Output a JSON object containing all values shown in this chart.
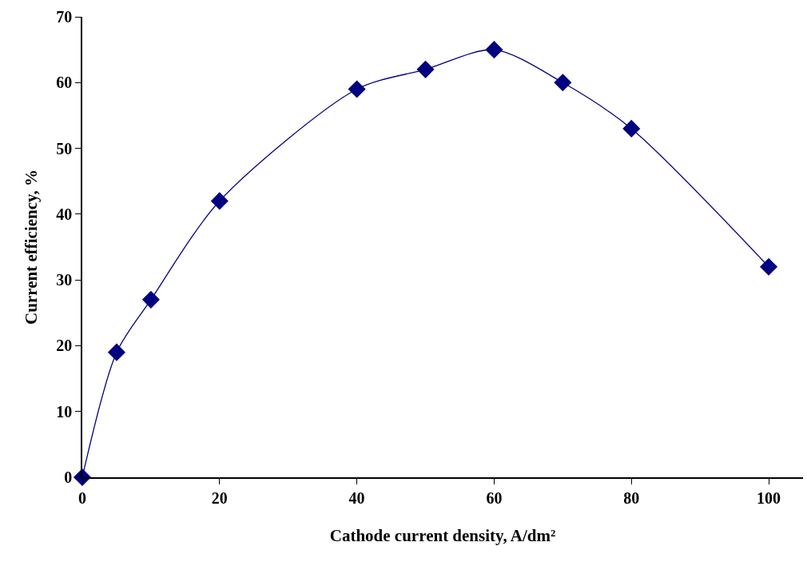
{
  "chart_data": {
    "type": "line",
    "xlabel": "Cathode current density, A/dm²",
    "ylabel": "Current efficiency, %",
    "x": [
      0,
      5,
      10,
      20,
      40,
      50,
      60,
      70,
      80,
      100
    ],
    "series": [
      {
        "color": "#000080",
        "values": [
          0,
          19,
          27,
          42,
          59,
          62,
          65,
          60,
          53,
          32
        ]
      }
    ],
    "xlim": [
      0,
      105
    ],
    "xticks": [
      0,
      20,
      40,
      60,
      80,
      100
    ],
    "ylim": [
      0,
      70
    ],
    "yticks": [
      0,
      10,
      20,
      30,
      40,
      50,
      60,
      70
    ],
    "grid": false,
    "marker": "diamond",
    "line_style": "solid"
  }
}
